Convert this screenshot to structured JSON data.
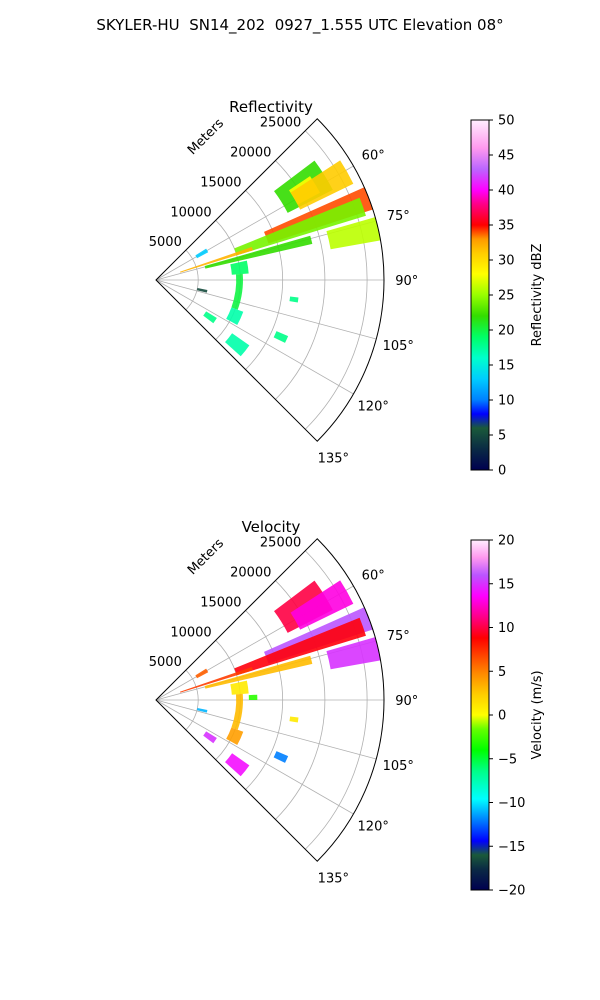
{
  "figure": {
    "title": "SKYLER-HU  SN14_202  0927_1.555 UTC Elevation 08°"
  },
  "chart_data": [
    {
      "type": "polar-sector",
      "title": "Reflectivity",
      "radial_axis_label": "Meters",
      "radial_ticks": [
        5000,
        10000,
        15000,
        20000,
        25000
      ],
      "radial_tick_labels": [
        "5000",
        "10000",
        "15000",
        "20000",
        "25000"
      ],
      "rlim": [
        0,
        27000
      ],
      "theta_range_deg": [
        45,
        135
      ],
      "theta_ticks_deg": [
        60,
        75,
        90,
        105,
        120,
        135
      ],
      "theta_tick_labels": [
        "60°",
        "75°",
        "90°",
        "105°",
        "120°",
        "135°"
      ],
      "grid": true,
      "colorbar": {
        "label": "Reflectivity dBZ",
        "range": [
          0,
          50
        ],
        "ticks": [
          0,
          5,
          10,
          15,
          20,
          25,
          30,
          35,
          40,
          45,
          50
        ],
        "tick_labels": [
          "0",
          "5",
          "10",
          "15",
          "20",
          "25",
          "30",
          "35",
          "40",
          "45",
          "50"
        ]
      },
      "echoes": [
        {
          "theta": [
            53,
            63
          ],
          "r": [
            17500,
            23500
          ],
          "value": 22
        },
        {
          "theta": [
            56,
            62
          ],
          "r": [
            19000,
            22000
          ],
          "value": 28
        },
        {
          "theta": [
            57,
            64
          ],
          "r": [
            19000,
            26000
          ],
          "value": 31
        },
        {
          "theta": [
            66,
            72
          ],
          "r": [
            14000,
            27000
          ],
          "value": 34
        },
        {
          "theta": [
            68,
            73
          ],
          "r": [
            10000,
            26000
          ],
          "value": 24
        },
        {
          "theta": [
            71,
            73
          ],
          "r": [
            3000,
            12000
          ],
          "value": 32
        },
        {
          "theta": [
            74,
            77
          ],
          "r": [
            6000,
            19000
          ],
          "value": 22
        },
        {
          "theta": [
            74,
            80
          ],
          "r": [
            21000,
            27000
          ],
          "value": 26
        },
        {
          "theta": [
            78,
            86
          ],
          "r": [
            9000,
            11000
          ],
          "value": 19
        },
        {
          "theta": [
            86,
            110
          ],
          "r": [
            9500,
            10300
          ],
          "value": 20
        },
        {
          "theta": [
            110,
            119
          ],
          "r": [
            9500,
            11000
          ],
          "value": 17
        },
        {
          "theta": [
            101,
            104
          ],
          "r": [
            5000,
            6200
          ],
          "value": 5
        },
        {
          "theta": [
            122,
            127
          ],
          "r": [
            7000,
            8500
          ],
          "value": 18
        },
        {
          "theta": [
            125,
            132
          ],
          "r": [
            11000,
            13500
          ],
          "value": 17
        },
        {
          "theta": [
            113,
            116
          ],
          "r": [
            15500,
            17000
          ],
          "value": 18
        },
        {
          "theta": [
            58,
            62
          ],
          "r": [
            5500,
            7000
          ],
          "value": 13
        },
        {
          "theta": [
            97,
            99
          ],
          "r": [
            16000,
            17000
          ],
          "value": 18
        }
      ]
    },
    {
      "type": "polar-sector",
      "title": "Velocity",
      "radial_axis_label": "Meters",
      "radial_ticks": [
        5000,
        10000,
        15000,
        20000,
        25000
      ],
      "radial_tick_labels": [
        "5000",
        "10000",
        "15000",
        "20000",
        "25000"
      ],
      "rlim": [
        0,
        27000
      ],
      "theta_range_deg": [
        45,
        135
      ],
      "theta_ticks_deg": [
        60,
        75,
        90,
        105,
        120,
        135
      ],
      "theta_tick_labels": [
        "60°",
        "75°",
        "90°",
        "105°",
        "120°",
        "135°"
      ],
      "grid": true,
      "colorbar": {
        "label": "Velocity (m/s)",
        "range": [
          -20,
          20
        ],
        "ticks": [
          -20,
          -15,
          -10,
          -5,
          0,
          5,
          10,
          15,
          20
        ],
        "tick_labels": [
          "−20",
          "−15",
          "−10",
          "−5",
          "0",
          "5",
          "10",
          "15",
          "20"
        ]
      },
      "echoes": [
        {
          "theta": [
            53,
            63
          ],
          "r": [
            17500,
            23500
          ],
          "value": 10
        },
        {
          "theta": [
            57,
            64
          ],
          "r": [
            19000,
            26000
          ],
          "value": 13
        },
        {
          "theta": [
            66,
            72
          ],
          "r": [
            14000,
            27000
          ],
          "value": 16
        },
        {
          "theta": [
            68,
            73
          ],
          "r": [
            10000,
            26000
          ],
          "value": 9
        },
        {
          "theta": [
            71,
            73
          ],
          "r": [
            3000,
            12000
          ],
          "value": 7
        },
        {
          "theta": [
            74,
            77
          ],
          "r": [
            6000,
            19000
          ],
          "value": 3
        },
        {
          "theta": [
            74,
            80
          ],
          "r": [
            21000,
            27000
          ],
          "value": 15
        },
        {
          "theta": [
            78,
            86
          ],
          "r": [
            9000,
            11000
          ],
          "value": 1
        },
        {
          "theta": [
            86,
            110
          ],
          "r": [
            9500,
            10300
          ],
          "value": 3
        },
        {
          "theta": [
            110,
            119
          ],
          "r": [
            9500,
            11000
          ],
          "value": 4
        },
        {
          "theta": [
            101,
            104
          ],
          "r": [
            5000,
            6200
          ],
          "value": -11
        },
        {
          "theta": [
            122,
            127
          ],
          "r": [
            7000,
            8500
          ],
          "value": 15
        },
        {
          "theta": [
            125,
            132
          ],
          "r": [
            11000,
            13500
          ],
          "value": 14
        },
        {
          "theta": [
            113,
            116
          ],
          "r": [
            15500,
            17000
          ],
          "value": -12
        },
        {
          "theta": [
            58,
            62
          ],
          "r": [
            5500,
            7000
          ],
          "value": 6
        },
        {
          "theta": [
            97,
            99
          ],
          "r": [
            16000,
            17000
          ],
          "value": 1
        },
        {
          "theta": [
            87,
            90
          ],
          "r": [
            11000,
            12000
          ],
          "value": -3
        }
      ]
    }
  ]
}
